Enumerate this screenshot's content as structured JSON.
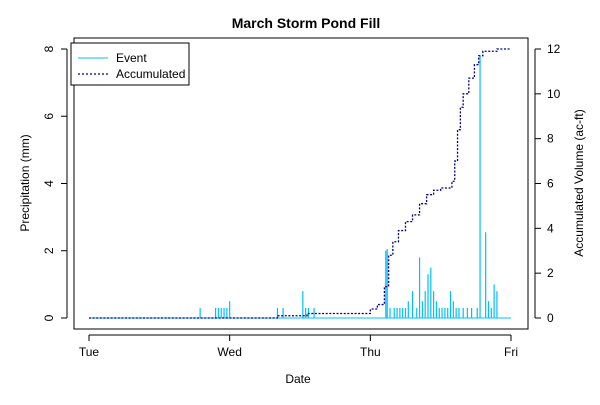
{
  "chart_data": {
    "type": "bar+line",
    "title": "March Storm Pond Fill",
    "xlabel": "Date",
    "ylabel_left": "Precipitation (mm)",
    "ylabel_right": "Accumulated Volume (ac-ft)",
    "x_ticks": [
      {
        "day": 0,
        "label": "Tue"
      },
      {
        "day": 1,
        "label": "Wed"
      },
      {
        "day": 2,
        "label": "Thu"
      },
      {
        "day": 3,
        "label": "Fri"
      }
    ],
    "y_left_ticks": [
      0,
      2,
      4,
      6,
      8
    ],
    "y_right_ticks": [
      0,
      2,
      4,
      6,
      8,
      10,
      12
    ],
    "xlim": [
      0,
      3
    ],
    "ylim_left": [
      0,
      8
    ],
    "ylim_right": [
      0,
      12
    ],
    "legend": {
      "position": "top-left",
      "entries": [
        {
          "label": "Event",
          "style": "solid",
          "color": "#00bfff"
        },
        {
          "label": "Accumulated",
          "style": "dotted",
          "color": "#00008b"
        }
      ]
    },
    "series": [
      {
        "name": "Event",
        "kind": "vertical-lines",
        "color": "#00bfff",
        "x": [
          0.79,
          0.9,
          0.92,
          0.94,
          0.96,
          0.98,
          1.0,
          1.34,
          1.38,
          1.52,
          1.54,
          1.56,
          1.6,
          2.11,
          2.12,
          2.14,
          2.17,
          2.19,
          2.21,
          2.23,
          2.25,
          2.27,
          2.3,
          2.33,
          2.35,
          2.37,
          2.39,
          2.41,
          2.43,
          2.45,
          2.47,
          2.49,
          2.51,
          2.53,
          2.55,
          2.57,
          2.59,
          2.61,
          2.63,
          2.66,
          2.69,
          2.72,
          2.76,
          2.78,
          2.82,
          2.84,
          2.86,
          2.88,
          2.9
        ],
        "values": [
          0.3,
          0.3,
          0.3,
          0.3,
          0.3,
          0.3,
          0.5,
          0.3,
          0.3,
          0.8,
          0.3,
          0.3,
          0.3,
          2.0,
          2.05,
          0.3,
          0.3,
          0.3,
          0.3,
          0.3,
          0.3,
          0.5,
          0.8,
          0.3,
          1.8,
          0.5,
          0.8,
          1.3,
          1.5,
          0.8,
          0.5,
          0.3,
          0.3,
          0.3,
          0.3,
          0.8,
          0.5,
          0.3,
          0.3,
          0.3,
          0.3,
          0.3,
          0.3,
          7.8,
          2.55,
          0.5,
          0.3,
          1.0,
          0.8
        ]
      },
      {
        "name": "Accumulated",
        "kind": "step-line",
        "color": "#00008b",
        "x": [
          0.0,
          1.0,
          1.34,
          1.55,
          1.9,
          2.0,
          2.05,
          2.1,
          2.13,
          2.16,
          2.2,
          2.25,
          2.3,
          2.35,
          2.4,
          2.45,
          2.5,
          2.55,
          2.58,
          2.6,
          2.62,
          2.64,
          2.66,
          2.7,
          2.74,
          2.77,
          2.8,
          2.9,
          3.0
        ],
        "values": [
          0.0,
          0.0,
          0.1,
          0.2,
          0.2,
          0.4,
          0.6,
          1.4,
          2.8,
          3.4,
          3.9,
          4.3,
          4.6,
          5.1,
          5.5,
          5.7,
          5.8,
          5.8,
          6.1,
          7.0,
          8.4,
          9.4,
          10.0,
          10.7,
          11.3,
          11.7,
          11.9,
          12.0,
          12.0
        ]
      }
    ]
  }
}
